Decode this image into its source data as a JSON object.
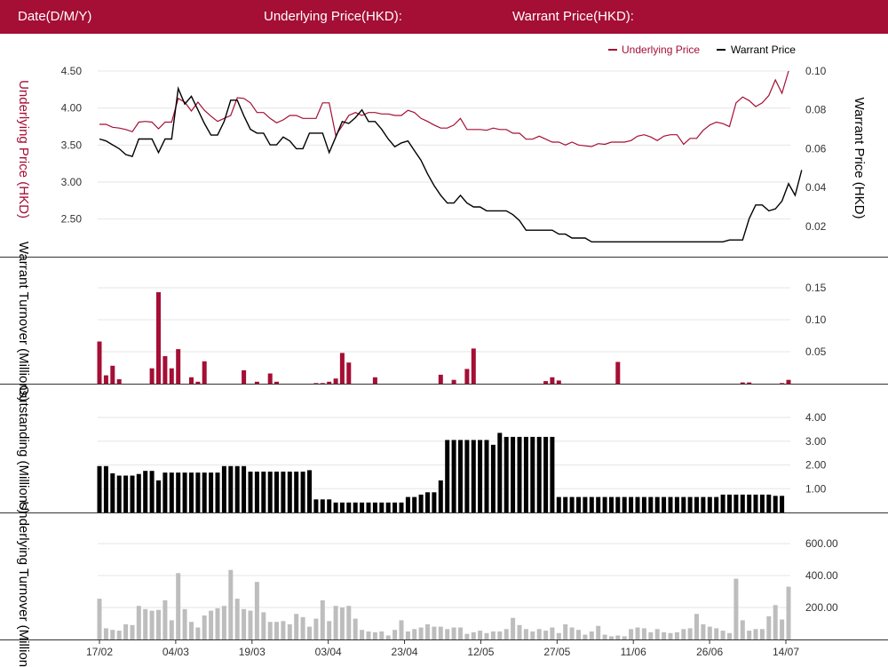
{
  "header": {
    "date_label": "Date(D/M/Y)",
    "underlying_label": "Underlying Price(HKD):",
    "warrant_label": "Warrant Price(HKD):"
  },
  "colors": {
    "header_bg": "#a50e35",
    "underlying": "#a50e35",
    "warrant": "#000000",
    "outstanding": "#000000",
    "underlying_turnover": "#bdbdbd"
  },
  "chart_data": {
    "type": "line",
    "x_tick_labels": [
      "17/02",
      "04/03",
      "19/03",
      "03/04",
      "23/04",
      "12/05",
      "27/05",
      "11/06",
      "26/06",
      "14/07"
    ],
    "legend": {
      "placement": "top-right",
      "entries": [
        "Underlying Price",
        "Warrant Price"
      ]
    },
    "price_panel": {
      "left_axis": {
        "label": "Underlying Price (HKD)",
        "ticks": [
          "4.50",
          "4.00",
          "3.50",
          "3.00",
          "2.50"
        ],
        "range": [
          2.1,
          4.5
        ]
      },
      "right_axis": {
        "label": "Warrant  Price (HKD)",
        "ticks": [
          "0.10",
          "0.08",
          "0.06",
          "0.04",
          "0.02"
        ],
        "range": [
          0.0085,
          0.1
        ]
      },
      "series": [
        {
          "name": "Underlying Price",
          "axis": "left",
          "values": [
            3.78,
            3.78,
            3.74,
            3.73,
            3.71,
            3.68,
            3.81,
            3.82,
            3.81,
            3.72,
            3.81,
            3.81,
            4.13,
            4.08,
            3.96,
            4.08,
            3.97,
            3.89,
            3.82,
            3.86,
            3.9,
            4.14,
            4.13,
            4.07,
            3.94,
            3.94,
            3.86,
            3.8,
            3.84,
            3.9,
            3.9,
            3.86,
            3.86,
            3.86,
            4.07,
            4.07,
            3.63,
            3.76,
            3.9,
            3.94,
            3.9,
            3.94,
            3.94,
            3.92,
            3.92,
            3.9,
            3.9,
            3.97,
            3.94,
            3.86,
            3.82,
            3.77,
            3.73,
            3.73,
            3.77,
            3.86,
            3.71,
            3.71,
            3.71,
            3.7,
            3.73,
            3.71,
            3.71,
            3.66,
            3.66,
            3.58,
            3.58,
            3.62,
            3.58,
            3.54,
            3.54,
            3.5,
            3.54,
            3.5,
            3.49,
            3.48,
            3.52,
            3.51,
            3.54,
            3.54,
            3.54,
            3.56,
            3.62,
            3.64,
            3.61,
            3.56,
            3.62,
            3.64,
            3.64,
            3.51,
            3.59,
            3.59,
            3.7,
            3.77,
            3.81,
            3.79,
            3.75,
            4.07,
            4.15,
            4.1,
            4.02,
            4.07,
            4.17,
            4.38,
            4.2,
            4.5
          ]
        },
        {
          "name": "Warrant Price",
          "axis": "right",
          "values": [
            0.065,
            0.064,
            0.062,
            0.06,
            0.057,
            0.056,
            0.065,
            0.065,
            0.065,
            0.058,
            0.065,
            0.065,
            0.091,
            0.083,
            0.087,
            0.08,
            0.073,
            0.067,
            0.067,
            0.074,
            0.085,
            0.085,
            0.077,
            0.07,
            0.068,
            0.068,
            0.062,
            0.062,
            0.066,
            0.064,
            0.06,
            0.06,
            0.068,
            0.068,
            0.068,
            0.058,
            0.066,
            0.074,
            0.073,
            0.076,
            0.08,
            0.074,
            0.074,
            0.07,
            0.065,
            0.061,
            0.063,
            0.064,
            0.059,
            0.054,
            0.047,
            0.041,
            0.036,
            0.032,
            0.032,
            0.036,
            0.032,
            0.03,
            0.03,
            0.028,
            0.028,
            0.028,
            0.028,
            0.026,
            0.023,
            0.018,
            0.018,
            0.018,
            0.018,
            0.018,
            0.016,
            0.016,
            0.014,
            0.014,
            0.014,
            0.012,
            0.012,
            0.012,
            0.012,
            0.012,
            0.012,
            0.012,
            0.012,
            0.012,
            0.012,
            0.012,
            0.012,
            0.012,
            0.012,
            0.012,
            0.012,
            0.012,
            0.012,
            0.012,
            0.012,
            0.012,
            0.013,
            0.013,
            0.013,
            0.024,
            0.031,
            0.031,
            0.028,
            0.029,
            0.033,
            0.042,
            0.036,
            0.049
          ]
        }
      ]
    },
    "warrant_turnover_panel": {
      "type": "bar",
      "axis_label": "Warrant  Turnover (Millions)",
      "ticks": [
        "0.15",
        "0.10",
        "0.05"
      ],
      "range": [
        0,
        0.15
      ],
      "values": [
        0.066,
        0.013,
        0.028,
        0.007,
        0,
        0,
        0,
        0,
        0.024,
        0.143,
        0.043,
        0.024,
        0.054,
        0,
        0.01,
        0.003,
        0.035,
        0,
        0,
        0,
        0,
        0,
        0.021,
        0,
        0.003,
        0,
        0.016,
        0.003,
        0,
        0,
        0,
        0,
        0,
        0.001,
        0.001,
        0.003,
        0.008,
        0.048,
        0.033,
        0,
        0,
        0,
        0.01,
        0,
        0,
        0,
        0,
        0,
        0,
        0,
        0,
        0,
        0.014,
        0,
        0.006,
        0,
        0.023,
        0.055,
        0,
        0,
        0,
        0,
        0,
        0,
        0,
        0,
        0,
        0,
        0.004,
        0.01,
        0.005,
        0,
        0,
        0,
        0,
        0,
        0,
        0,
        0,
        0.034,
        0,
        0,
        0,
        0,
        0,
        0,
        0,
        0,
        0,
        0,
        0,
        0,
        0,
        0,
        0,
        0,
        0,
        0,
        0.002,
        0.002,
        0,
        0,
        0,
        0,
        0.001,
        0.006
      ]
    },
    "outstanding_panel": {
      "type": "bar",
      "axis_label": "Outstanding (Millions)",
      "ticks": [
        "4.00",
        "3.00",
        "2.00",
        "1.00"
      ],
      "range": [
        0,
        4.0
      ],
      "values": [
        1.95,
        1.95,
        1.65,
        1.55,
        1.55,
        1.55,
        1.62,
        1.75,
        1.75,
        1.35,
        1.68,
        1.68,
        1.68,
        1.68,
        1.68,
        1.68,
        1.68,
        1.68,
        1.68,
        1.95,
        1.95,
        1.95,
        1.95,
        1.72,
        1.72,
        1.72,
        1.72,
        1.72,
        1.72,
        1.72,
        1.72,
        1.72,
        1.78,
        0.55,
        0.55,
        0.55,
        0.42,
        0.42,
        0.42,
        0.42,
        0.42,
        0.42,
        0.42,
        0.42,
        0.42,
        0.42,
        0.42,
        0.65,
        0.65,
        0.75,
        0.85,
        0.85,
        1.35,
        3.05,
        3.05,
        3.05,
        3.05,
        3.05,
        3.05,
        3.05,
        2.85,
        3.35,
        3.18,
        3.18,
        3.18,
        3.18,
        3.18,
        3.18,
        3.18,
        3.18,
        0.65,
        0.65,
        0.65,
        0.65,
        0.65,
        0.65,
        0.65,
        0.65,
        0.65,
        0.65,
        0.65,
        0.65,
        0.65,
        0.65,
        0.65,
        0.65,
        0.65,
        0.65,
        0.65,
        0.65,
        0.65,
        0.65,
        0.65,
        0.65,
        0.65,
        0.75,
        0.75,
        0.75,
        0.75,
        0.75,
        0.75,
        0.75,
        0.75,
        0.7,
        0.7
      ]
    },
    "underlying_turnover_panel": {
      "type": "bar",
      "axis_label": "Underlying Turnover (Millions)",
      "ticks": [
        "600.00",
        "400.00",
        "200.00"
      ],
      "range": [
        0,
        600
      ],
      "values": [
        255,
        70,
        60,
        55,
        95,
        90,
        210,
        190,
        180,
        185,
        245,
        120,
        415,
        190,
        110,
        75,
        150,
        180,
        195,
        210,
        435,
        255,
        190,
        180,
        360,
        170,
        110,
        110,
        115,
        95,
        160,
        140,
        80,
        130,
        245,
        115,
        210,
        200,
        210,
        130,
        60,
        50,
        45,
        50,
        25,
        60,
        120,
        50,
        65,
        75,
        95,
        80,
        80,
        65,
        75,
        75,
        35,
        45,
        55,
        40,
        50,
        50,
        65,
        135,
        90,
        65,
        50,
        65,
        55,
        75,
        40,
        95,
        75,
        60,
        30,
        50,
        85,
        30,
        20,
        25,
        20,
        65,
        75,
        70,
        45,
        65,
        45,
        40,
        45,
        65,
        70,
        160,
        95,
        80,
        70,
        55,
        40,
        380,
        120,
        55,
        65,
        65,
        145,
        215,
        125,
        330
      ]
    }
  }
}
